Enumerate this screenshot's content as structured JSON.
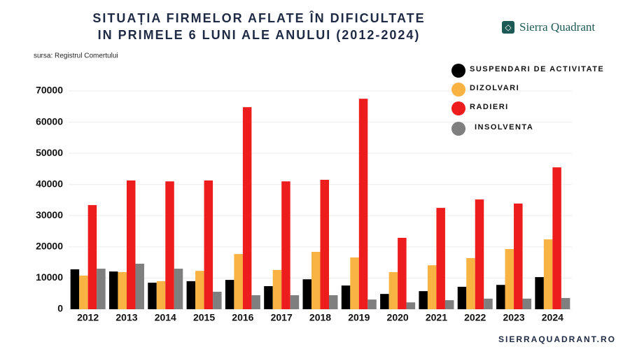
{
  "chart_data": {
    "type": "bar",
    "title": "SITUAȚIA FIRMELOR AFLATE ÎN DIFICULTATE IN PRIMELE 6 LUNI ALE ANULUI (2012-2024)",
    "source": "sursa: Registrul Comertului",
    "brand": "Sierra Quadrant",
    "website": "SIERRAQUADRANT.RO",
    "categories": [
      "2012",
      "2013",
      "2014",
      "2015",
      "2016",
      "2017",
      "2018",
      "2019",
      "2020",
      "2021",
      "2022",
      "2023",
      "2024"
    ],
    "series": [
      {
        "name": "SUSPENDARI DE ACTIVITATE",
        "color": "#000000",
        "values": [
          12800,
          12100,
          8500,
          9000,
          9400,
          7400,
          9600,
          7600,
          4900,
          5800,
          7200,
          7800,
          10300
        ]
      },
      {
        "name": "DIZOLVARI",
        "color": "#f8b342",
        "values": [
          10800,
          11900,
          9000,
          12300,
          17700,
          12600,
          18400,
          16600,
          11900,
          14100,
          16400,
          19300,
          22400
        ]
      },
      {
        "name": "RADIERI",
        "color": "#ee1d1d",
        "values": [
          33400,
          41300,
          41000,
          41300,
          64800,
          41000,
          41500,
          67500,
          22900,
          32500,
          35200,
          33900,
          45500
        ]
      },
      {
        "name": "INSOLVENTA",
        "color": "#7f7f7f",
        "values": [
          13000,
          14600,
          13000,
          5600,
          4500,
          4500,
          4500,
          3100,
          2200,
          2900,
          3400,
          3400,
          3600
        ]
      }
    ],
    "ylim": [
      0,
      70000
    ],
    "yticks": [
      0,
      10000,
      20000,
      30000,
      40000,
      50000,
      60000,
      70000
    ],
    "grid": true,
    "legend": "top-right"
  }
}
